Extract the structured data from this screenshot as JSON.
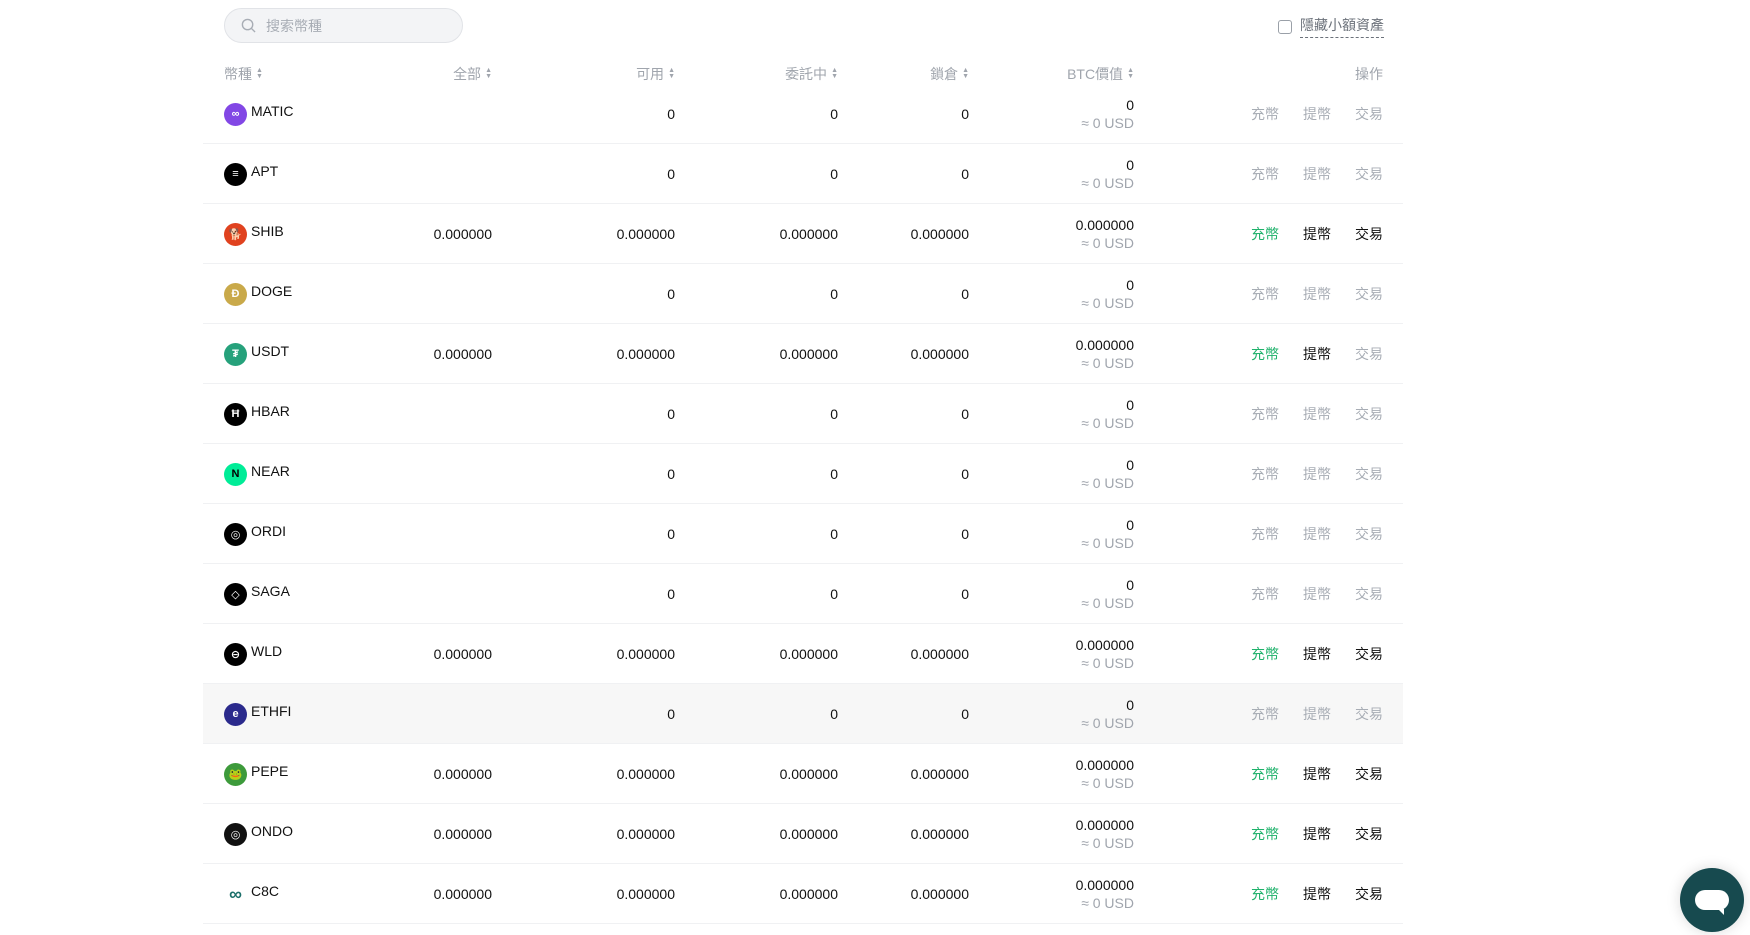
{
  "search": {
    "placeholder": "搜索幣種",
    "icon": "search-icon"
  },
  "hide_small": {
    "label": "隱藏小額資產",
    "checked": false
  },
  "headers": {
    "coin": "幣種",
    "total": "全部",
    "available": "可用",
    "in_order": "委託中",
    "locked": "鎖倉",
    "btc_value": "BTC價值",
    "actions": "操作"
  },
  "colors": {
    "green": "#20b26c",
    "chat": "#174a4f"
  },
  "rows": [
    {
      "coin": "MATIC",
      "icon_color": "#8247e5",
      "glyph": "∞",
      "total": "",
      "available": "0",
      "in_order": "0",
      "locked": "0",
      "btc": "0",
      "usd": "≈ 0 USD",
      "deposit": "充幣",
      "withdraw": "提幣",
      "trade": "交易",
      "states": [
        "gray",
        "gray",
        "gray"
      ]
    },
    {
      "coin": "APT",
      "icon_color": "#000000",
      "glyph": "≡",
      "total": "",
      "available": "0",
      "in_order": "0",
      "locked": "0",
      "btc": "0",
      "usd": "≈ 0 USD",
      "deposit": "充幣",
      "withdraw": "提幣",
      "trade": "交易",
      "states": [
        "gray",
        "gray",
        "gray"
      ]
    },
    {
      "coin": "SHIB",
      "icon_color": "#e0421f",
      "glyph": "🐕",
      "total": "0.000000",
      "available": "0.000000",
      "in_order": "0.000000",
      "locked": "0.000000",
      "btc": "0.000000",
      "usd": "≈ 0 USD",
      "deposit": "充幣",
      "withdraw": "提幣",
      "trade": "交易",
      "states": [
        "green",
        "dark",
        "dark"
      ]
    },
    {
      "coin": "DOGE",
      "icon_color": "#c9a94a",
      "glyph": "Ð",
      "total": "",
      "available": "0",
      "in_order": "0",
      "locked": "0",
      "btc": "0",
      "usd": "≈ 0 USD",
      "deposit": "充幣",
      "withdraw": "提幣",
      "trade": "交易",
      "states": [
        "gray",
        "gray",
        "gray"
      ]
    },
    {
      "coin": "USDT",
      "icon_color": "#26a17b",
      "glyph": "₮",
      "total": "0.000000",
      "available": "0.000000",
      "in_order": "0.000000",
      "locked": "0.000000",
      "btc": "0.000000",
      "usd": "≈ 0 USD",
      "deposit": "充幣",
      "withdraw": "提幣",
      "trade": "交易",
      "states": [
        "green",
        "dark",
        "gray"
      ]
    },
    {
      "coin": "HBAR",
      "icon_color": "#000000",
      "glyph": "Ħ",
      "total": "",
      "available": "0",
      "in_order": "0",
      "locked": "0",
      "btc": "0",
      "usd": "≈ 0 USD",
      "deposit": "充幣",
      "withdraw": "提幣",
      "trade": "交易",
      "states": [
        "gray",
        "gray",
        "gray"
      ]
    },
    {
      "coin": "NEAR",
      "icon_color": "#00ec97",
      "glyph": "N",
      "total": "",
      "available": "0",
      "in_order": "0",
      "locked": "0",
      "btc": "0",
      "usd": "≈ 0 USD",
      "deposit": "充幣",
      "withdraw": "提幣",
      "trade": "交易",
      "states": [
        "gray",
        "gray",
        "gray"
      ]
    },
    {
      "coin": "ORDI",
      "icon_color": "#000000",
      "glyph": "◎",
      "total": "",
      "available": "0",
      "in_order": "0",
      "locked": "0",
      "btc": "0",
      "usd": "≈ 0 USD",
      "deposit": "充幣",
      "withdraw": "提幣",
      "trade": "交易",
      "states": [
        "gray",
        "gray",
        "gray"
      ]
    },
    {
      "coin": "SAGA",
      "icon_color": "#000000",
      "glyph": "◇",
      "total": "",
      "available": "0",
      "in_order": "0",
      "locked": "0",
      "btc": "0",
      "usd": "≈ 0 USD",
      "deposit": "充幣",
      "withdraw": "提幣",
      "trade": "交易",
      "states": [
        "gray",
        "gray",
        "gray"
      ]
    },
    {
      "coin": "WLD",
      "icon_color": "#000000",
      "glyph": "⊖",
      "total": "0.000000",
      "available": "0.000000",
      "in_order": "0.000000",
      "locked": "0.000000",
      "btc": "0.000000",
      "usd": "≈ 0 USD",
      "deposit": "充幣",
      "withdraw": "提幣",
      "trade": "交易",
      "states": [
        "green",
        "dark",
        "dark"
      ]
    },
    {
      "coin": "ETHFI",
      "icon_color": "#2b2a8c",
      "glyph": "e",
      "total": "",
      "available": "0",
      "in_order": "0",
      "locked": "0",
      "btc": "0",
      "usd": "≈ 0 USD",
      "deposit": "充幣",
      "withdraw": "提幣",
      "trade": "交易",
      "states": [
        "gray",
        "gray",
        "gray"
      ]
    },
    {
      "coin": "PEPE",
      "icon_color": "#3d9a3b",
      "glyph": "🐸",
      "total": "0.000000",
      "available": "0.000000",
      "in_order": "0.000000",
      "locked": "0.000000",
      "btc": "0.000000",
      "usd": "≈ 0 USD",
      "deposit": "充幣",
      "withdraw": "提幣",
      "trade": "交易",
      "states": [
        "green",
        "dark",
        "dark"
      ]
    },
    {
      "coin": "ONDO",
      "icon_color": "#111111",
      "glyph": "◎",
      "total": "0.000000",
      "available": "0.000000",
      "in_order": "0.000000",
      "locked": "0.000000",
      "btc": "0.000000",
      "usd": "≈ 0 USD",
      "deposit": "充幣",
      "withdraw": "提幣",
      "trade": "交易",
      "states": [
        "green",
        "dark",
        "dark"
      ]
    },
    {
      "coin": "C8C",
      "icon_color": "#ffffff",
      "glyph": "∞",
      "total": "0.000000",
      "available": "0.000000",
      "in_order": "0.000000",
      "locked": "0.000000",
      "btc": "0.000000",
      "usd": "≈ 0 USD",
      "deposit": "充幣",
      "withdraw": "提幣",
      "trade": "交易",
      "states": [
        "green",
        "dark",
        "dark"
      ]
    }
  ]
}
